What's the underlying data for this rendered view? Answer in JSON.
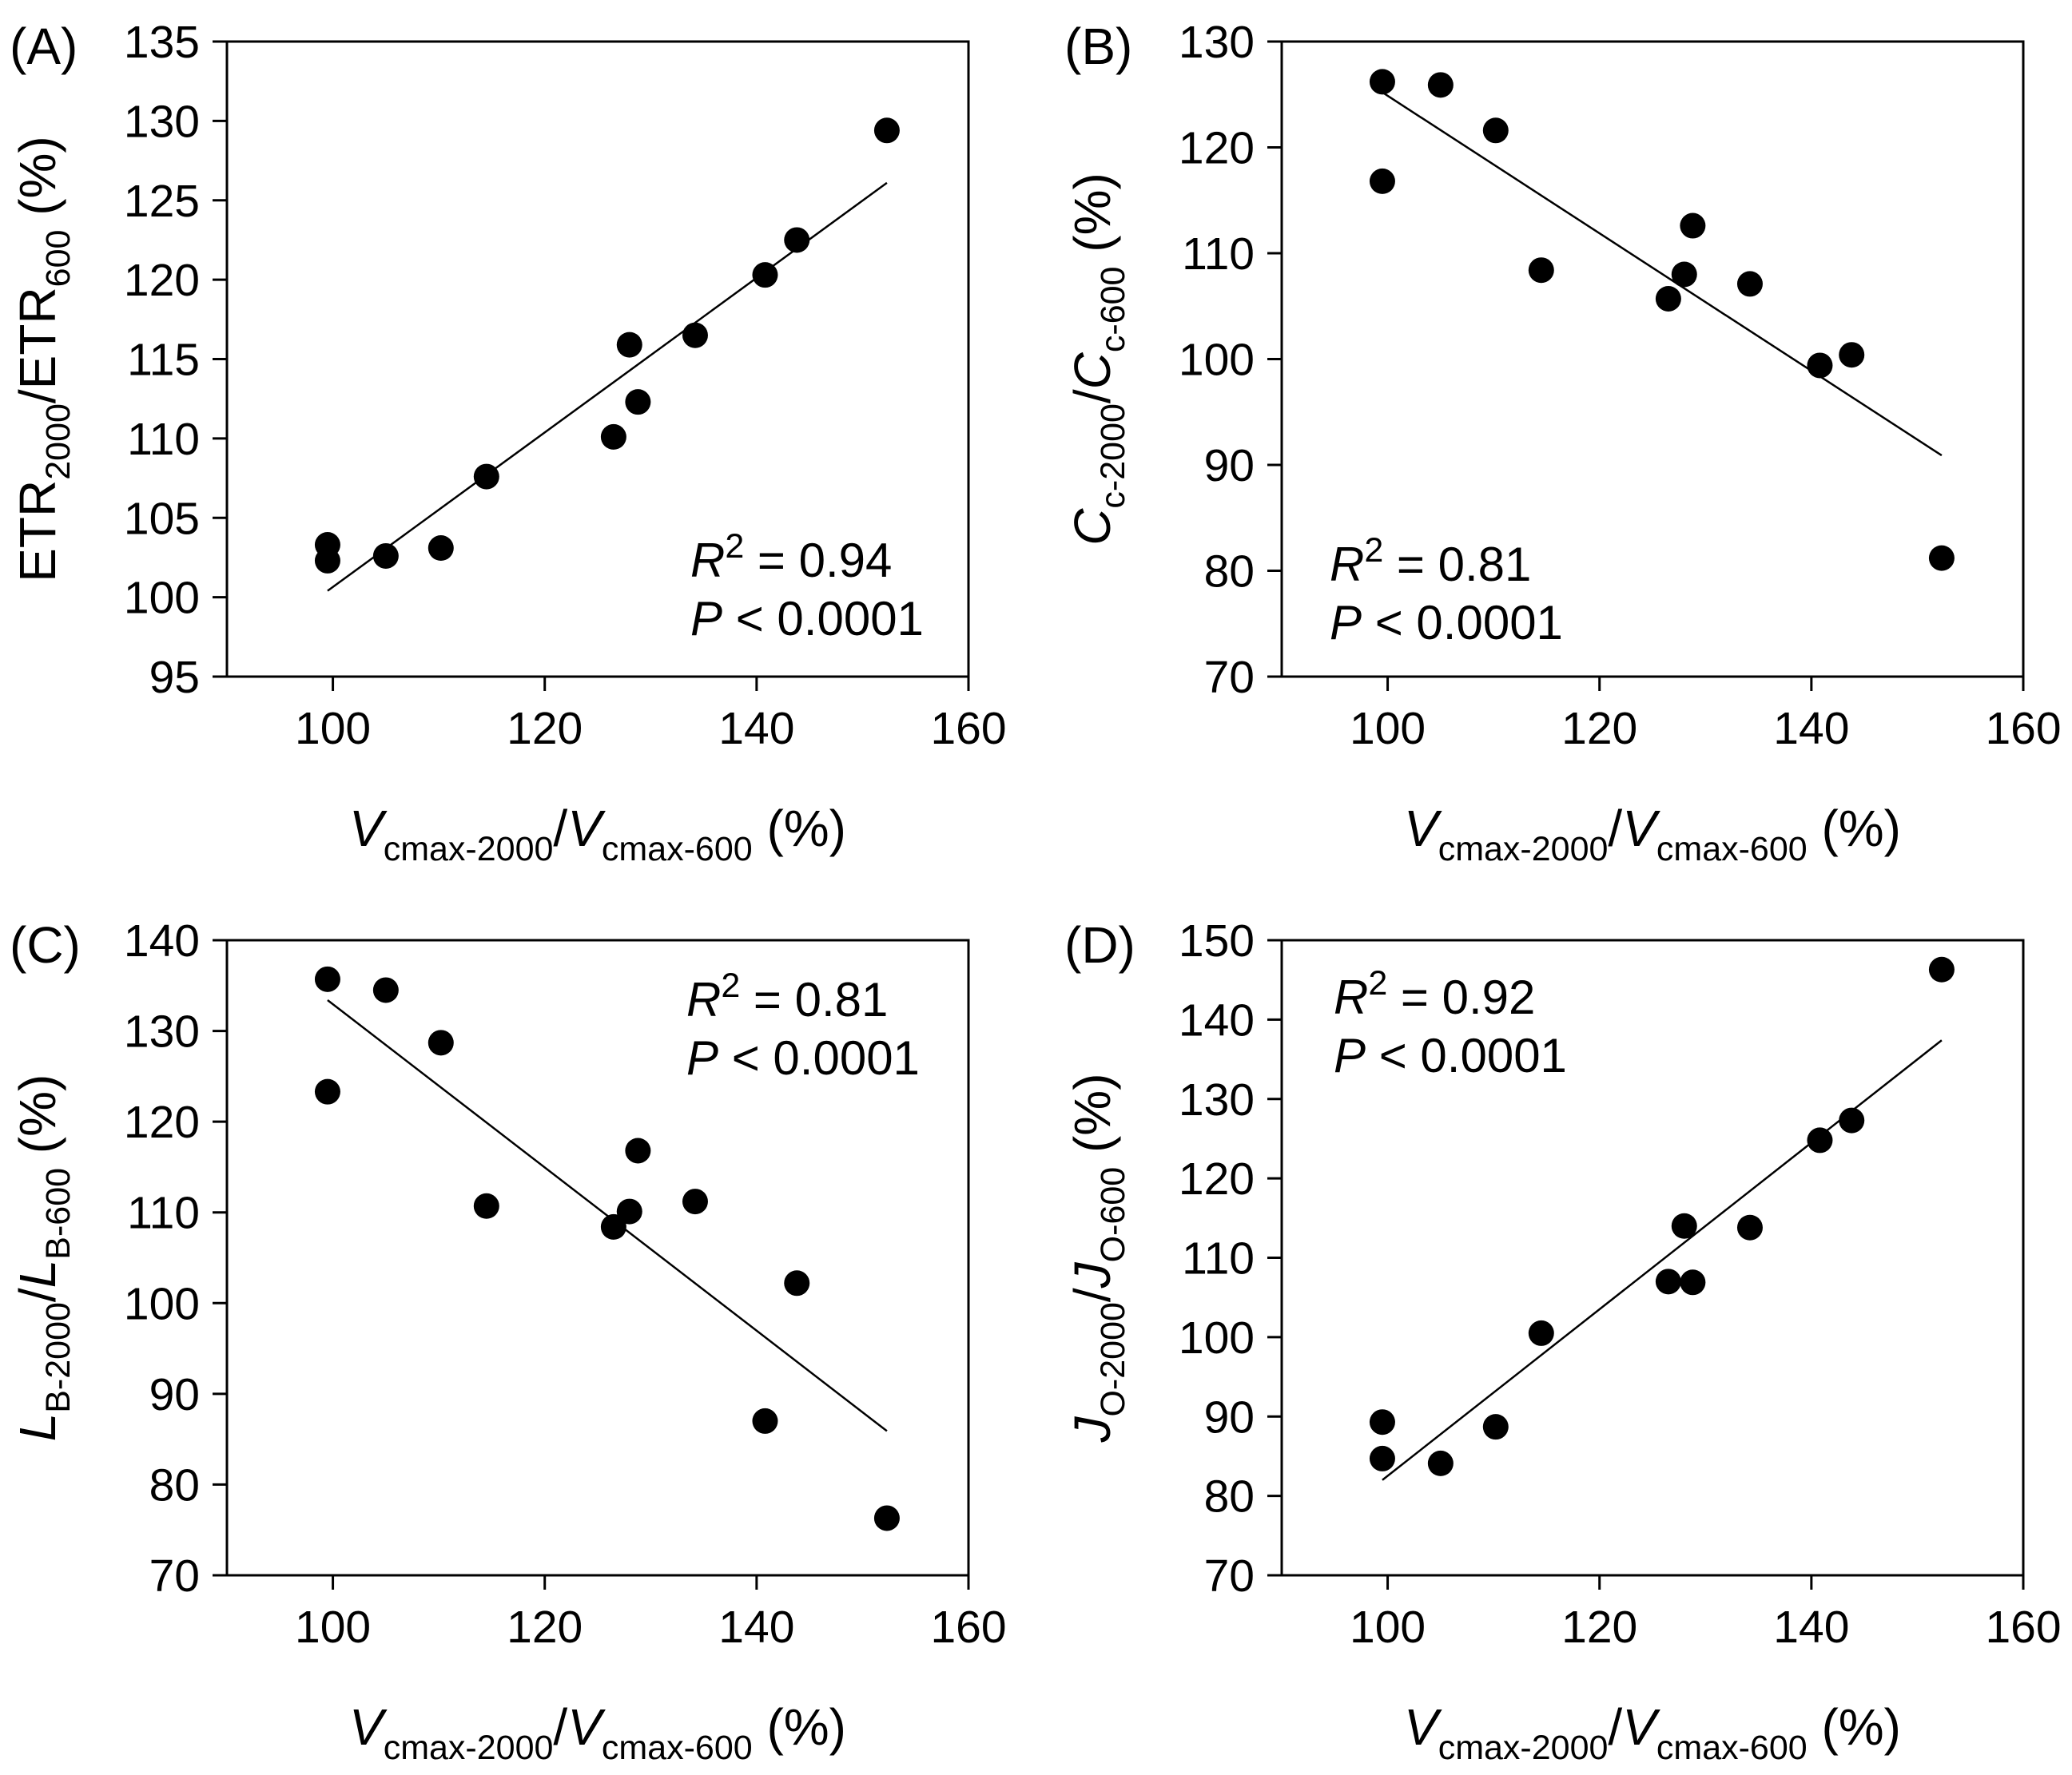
{
  "chart_data": [
    {
      "type": "scatter",
      "panel_label": "(A)",
      "xlabel": {
        "var": "V",
        "sub1": "cmax-2000",
        "sep": "/",
        "var2": "V",
        "sub2": "cmax-600",
        "unit": " (%)"
      },
      "ylabel": {
        "var": "ETR",
        "sub1": "2000",
        "sep": "/",
        "var2": "ETR",
        "sub2": "600",
        "unit": " (%)"
      },
      "xlim": [
        90,
        160
      ],
      "ylim": [
        95,
        135
      ],
      "xticks": [
        100,
        120,
        140,
        160
      ],
      "yticks": [
        95,
        100,
        105,
        110,
        115,
        120,
        125,
        130,
        135
      ],
      "x": [
        99.5,
        99.5,
        105,
        110.2,
        114.5,
        126.5,
        128,
        128.8,
        134.2,
        140.8,
        143.8,
        152.3
      ],
      "y": [
        103.3,
        102.3,
        102.6,
        103.1,
        107.6,
        110.1,
        115.9,
        112.3,
        116.5,
        120.3,
        122.5,
        129.4
      ],
      "fit": {
        "x": [
          99.5,
          152.3
        ],
        "y": [
          100.4,
          126.1
        ]
      },
      "annotation": {
        "r2_label": "R",
        "r2_exp": "2",
        "r2_value": " = 0.94",
        "p_label": "P",
        "p_value": " < 0.0001",
        "placement": "bottom-right"
      }
    },
    {
      "type": "scatter",
      "panel_label": "(B)",
      "xlabel": {
        "var": "V",
        "sub1": "cmax-2000",
        "sep": "/",
        "var2": "V",
        "sub2": "cmax-600",
        "unit": " (%)"
      },
      "ylabel": {
        "var": "C",
        "sub1": "c-2000",
        "sep": "/",
        "var2": "C",
        "sub2": "c-600",
        "unit": " (%)"
      },
      "xlim": [
        90,
        160
      ],
      "ylim": [
        70,
        130
      ],
      "xticks": [
        100,
        120,
        140,
        160
      ],
      "yticks": [
        70,
        80,
        90,
        100,
        110,
        120,
        130
      ],
      "x": [
        99.5,
        99.5,
        105,
        110.2,
        114.5,
        126.5,
        128,
        128.8,
        134.2,
        140.8,
        143.8,
        152.3
      ],
      "y": [
        126.2,
        116.8,
        125.9,
        121.6,
        108.4,
        105.7,
        108,
        112.6,
        107.1,
        99.4,
        100.4,
        81.2
      ],
      "fit": {
        "x": [
          99.5,
          152.3
        ],
        "y": [
          125.2,
          90.9
        ]
      },
      "annotation": {
        "r2_label": "R",
        "r2_exp": "2",
        "r2_value": " = 0.81",
        "p_label": "P",
        "p_value": " < 0.0001",
        "placement": "bottom-left"
      }
    },
    {
      "type": "scatter",
      "panel_label": "(C)",
      "xlabel": {
        "var": "V",
        "sub1": "cmax-2000",
        "sep": "/",
        "var2": "V",
        "sub2": "cmax-600",
        "unit": " (%)"
      },
      "ylabel": {
        "var": "L",
        "sub1": "B-2000",
        "sep": "/",
        "var2": "L",
        "sub2": "B-600",
        "unit": " (%)"
      },
      "xlim": [
        90,
        160
      ],
      "ylim": [
        70,
        140
      ],
      "xticks": [
        100,
        120,
        140,
        160
      ],
      "yticks": [
        70,
        80,
        90,
        100,
        110,
        120,
        130,
        140
      ],
      "x": [
        99.5,
        99.5,
        105,
        110.2,
        114.5,
        126.5,
        128,
        128.8,
        134.2,
        140.8,
        143.8,
        152.3
      ],
      "y": [
        135.7,
        123.3,
        134.5,
        128.7,
        110.7,
        108.4,
        110.1,
        116.8,
        111.2,
        87,
        102.2,
        76.3
      ],
      "fit": {
        "x": [
          99.5,
          152.3
        ],
        "y": [
          133.4,
          85.9
        ]
      },
      "annotation": {
        "r2_label": "R",
        "r2_exp": "2",
        "r2_value": " = 0.81",
        "p_label": "P",
        "p_value": " < 0.0001",
        "placement": "top-right"
      }
    },
    {
      "type": "scatter",
      "panel_label": "(D)",
      "xlabel": {
        "var": "V",
        "sub1": "cmax-2000",
        "sep": "/",
        "var2": "V",
        "sub2": "cmax-600",
        "unit": " (%)"
      },
      "ylabel": {
        "var": "J",
        "sub1": "O-2000",
        "sep": "/",
        "var2": "J",
        "sub2": "O-600",
        "unit": " (%)"
      },
      "xlim": [
        90,
        160
      ],
      "ylim": [
        70,
        150
      ],
      "xticks": [
        100,
        120,
        140,
        160
      ],
      "yticks": [
        70,
        80,
        90,
        100,
        110,
        120,
        130,
        140,
        150
      ],
      "x": [
        99.5,
        99.5,
        105,
        110.2,
        114.5,
        126.5,
        128,
        128.8,
        134.2,
        140.8,
        143.8,
        152.3
      ],
      "y": [
        89.3,
        84.7,
        84.1,
        88.7,
        100.5,
        107,
        114,
        106.9,
        113.8,
        124.8,
        127.3,
        146.3
      ],
      "fit": {
        "x": [
          99.5,
          152.3
        ],
        "y": [
          82,
          137.4
        ]
      },
      "annotation": {
        "r2_label": "R",
        "r2_exp": "2",
        "r2_value": " = 0.92",
        "p_label": "P",
        "p_value": " < 0.0001",
        "placement": "top-left"
      }
    }
  ]
}
